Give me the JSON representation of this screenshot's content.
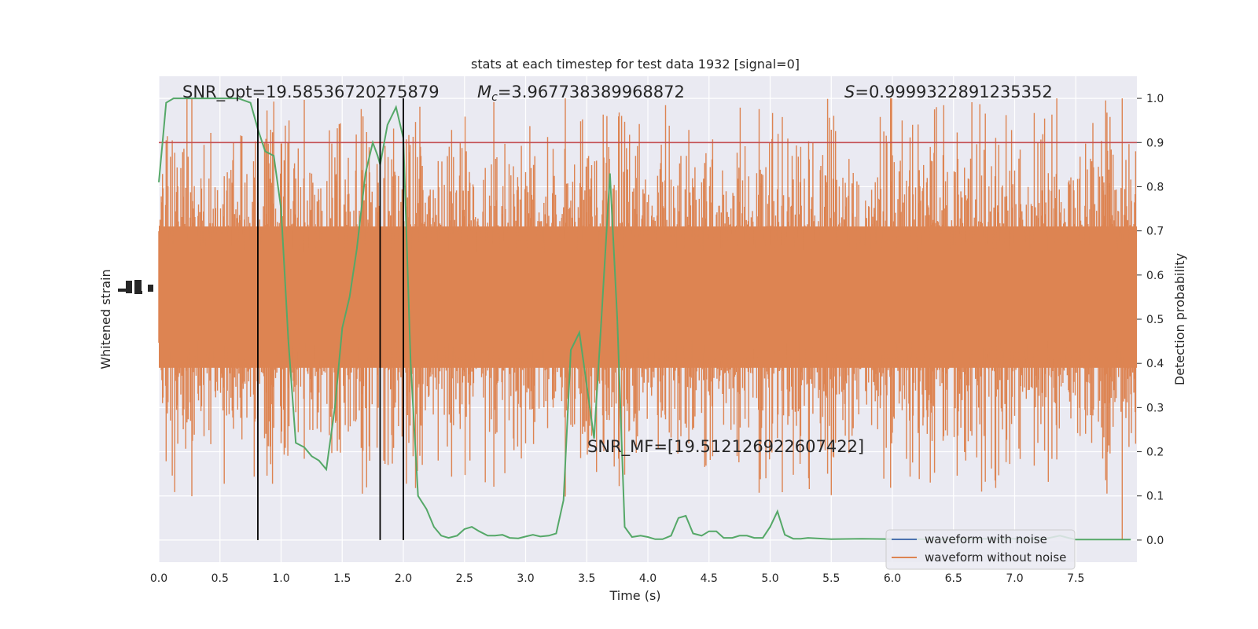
{
  "chart_data": {
    "type": "line",
    "title": "stats at each timestep for test data 1932 [signal=0]",
    "xlabel": "Time (s)",
    "ylabel_left": "Whitened strain",
    "ylabel_right": "Detection probability",
    "xlim": [
      0,
      8.0
    ],
    "ylim_right": [
      -0.05,
      1.05
    ],
    "x_ticks": [
      "0.0",
      "0.5",
      "1.0",
      "1.5",
      "2.0",
      "2.5",
      "3.0",
      "3.5",
      "4.0",
      "4.5",
      "5.0",
      "5.5",
      "6.0",
      "6.5",
      "7.0",
      "7.5"
    ],
    "x_tick_values": [
      0,
      0.5,
      1,
      1.5,
      2,
      2.5,
      3,
      3.5,
      4,
      4.5,
      5,
      5.5,
      6,
      6.5,
      7,
      7.5
    ],
    "y_right_ticks": [
      "0.0",
      "0.1",
      "0.2",
      "0.3",
      "0.4",
      "0.5",
      "0.6",
      "0.7",
      "0.8",
      "0.9",
      "1.0"
    ],
    "y_right_tick_values": [
      0,
      0.1,
      0.2,
      0.3,
      0.4,
      0.5,
      0.6,
      0.7,
      0.8,
      0.9,
      1.0
    ],
    "grid": true,
    "legend_position": "lower-right",
    "annotations": {
      "snr_opt": "SNR_opt=19.58536720275879",
      "mc_symbol": "M",
      "mc_subscript": "c",
      "mc_value": "=3.967738389968872",
      "s_symbol": "S",
      "s_value": "=0.9999322891235352",
      "snr_mf": "SNR_MF=[19.512126922607422]"
    },
    "threshold": {
      "value": 0.9,
      "color": "#c44e52"
    },
    "vertical_markers": [
      0.81,
      1.81,
      2.0
    ],
    "series": [
      {
        "name": "waveform with noise",
        "color": "#4c72b0",
        "values": []
      },
      {
        "name": "waveform without noise",
        "color": "#dd8452",
        "noise_band": {
          "center": 0.55,
          "core_half_width": 0.16,
          "spike_max": 1.0,
          "spike_min": 0.0,
          "sample_count": 1600
        }
      },
      {
        "color": "#55a868",
        "x": [
          0,
          0.03,
          0.06,
          0.12,
          0.25,
          0.5,
          0.65,
          0.75,
          0.81,
          0.87,
          0.94,
          1.0,
          1.06,
          1.12,
          1.19,
          1.25,
          1.31,
          1.37,
          1.44,
          1.5,
          1.56,
          1.62,
          1.69,
          1.75,
          1.79,
          1.81,
          1.87,
          1.94,
          2.0,
          2.06,
          2.12,
          2.19,
          2.25,
          2.31,
          2.37,
          2.44,
          2.5,
          2.56,
          2.62,
          2.69,
          2.75,
          2.81,
          2.87,
          2.94,
          3.0,
          3.06,
          3.12,
          3.19,
          3.25,
          3.31,
          3.37,
          3.44,
          3.5,
          3.56,
          3.62,
          3.69,
          3.75,
          3.81,
          3.87,
          3.94,
          4.0,
          4.06,
          4.12,
          4.19,
          4.25,
          4.31,
          4.37,
          4.44,
          4.5,
          4.56,
          4.62,
          4.69,
          4.75,
          4.81,
          4.87,
          4.94,
          5.0,
          5.06,
          5.12,
          5.19,
          5.25,
          5.31,
          5.5,
          5.75,
          6.0,
          6.25,
          6.5,
          6.75,
          7.0,
          7.25,
          7.37,
          7.44,
          7.5,
          7.75,
          7.95
        ],
        "y": [
          0.81,
          0.9,
          0.99,
          1.0,
          1.0,
          1.0,
          1.0,
          0.99,
          0.93,
          0.88,
          0.87,
          0.75,
          0.45,
          0.22,
          0.21,
          0.19,
          0.18,
          0.16,
          0.3,
          0.48,
          0.55,
          0.66,
          0.83,
          0.9,
          0.87,
          0.85,
          0.94,
          0.98,
          0.91,
          0.4,
          0.1,
          0.07,
          0.03,
          0.01,
          0.005,
          0.01,
          0.025,
          0.03,
          0.02,
          0.01,
          0.01,
          0.012,
          0.005,
          0.004,
          0.008,
          0.012,
          0.008,
          0.01,
          0.015,
          0.09,
          0.43,
          0.47,
          0.35,
          0.23,
          0.5,
          0.83,
          0.5,
          0.03,
          0.007,
          0.01,
          0.007,
          0.002,
          0.002,
          0.01,
          0.05,
          0.055,
          0.015,
          0.01,
          0.02,
          0.02,
          0.005,
          0.005,
          0.01,
          0.01,
          0.005,
          0.005,
          0.03,
          0.065,
          0.012,
          0.003,
          0.003,
          0.005,
          0.002,
          0.003,
          0.002,
          0.002,
          0.002,
          0.003,
          0.003,
          0.003,
          0.01,
          0.005,
          0.001,
          0.001,
          0.001
        ]
      }
    ]
  }
}
